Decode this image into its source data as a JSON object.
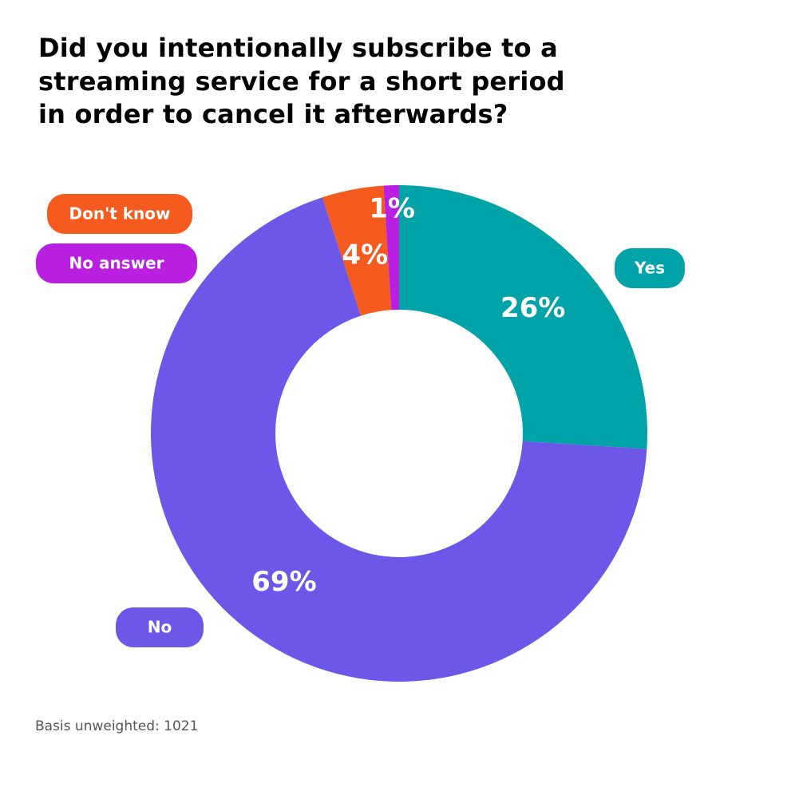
{
  "chart_data": {
    "type": "donut",
    "title": "Did you intentionally subscribe to a streaming service for a short period in order to cancel it afterwards?",
    "categories": [
      "Yes",
      "No",
      "Don't know",
      "No answer"
    ],
    "values": [
      26,
      69,
      4,
      1
    ],
    "value_labels": [
      "26%",
      "69%",
      "4%",
      "1%"
    ],
    "colors": [
      "#00a3a8",
      "#6c57e9",
      "#f55a1e",
      "#b81fe0"
    ],
    "note": "Basis unweighted: 1021"
  }
}
